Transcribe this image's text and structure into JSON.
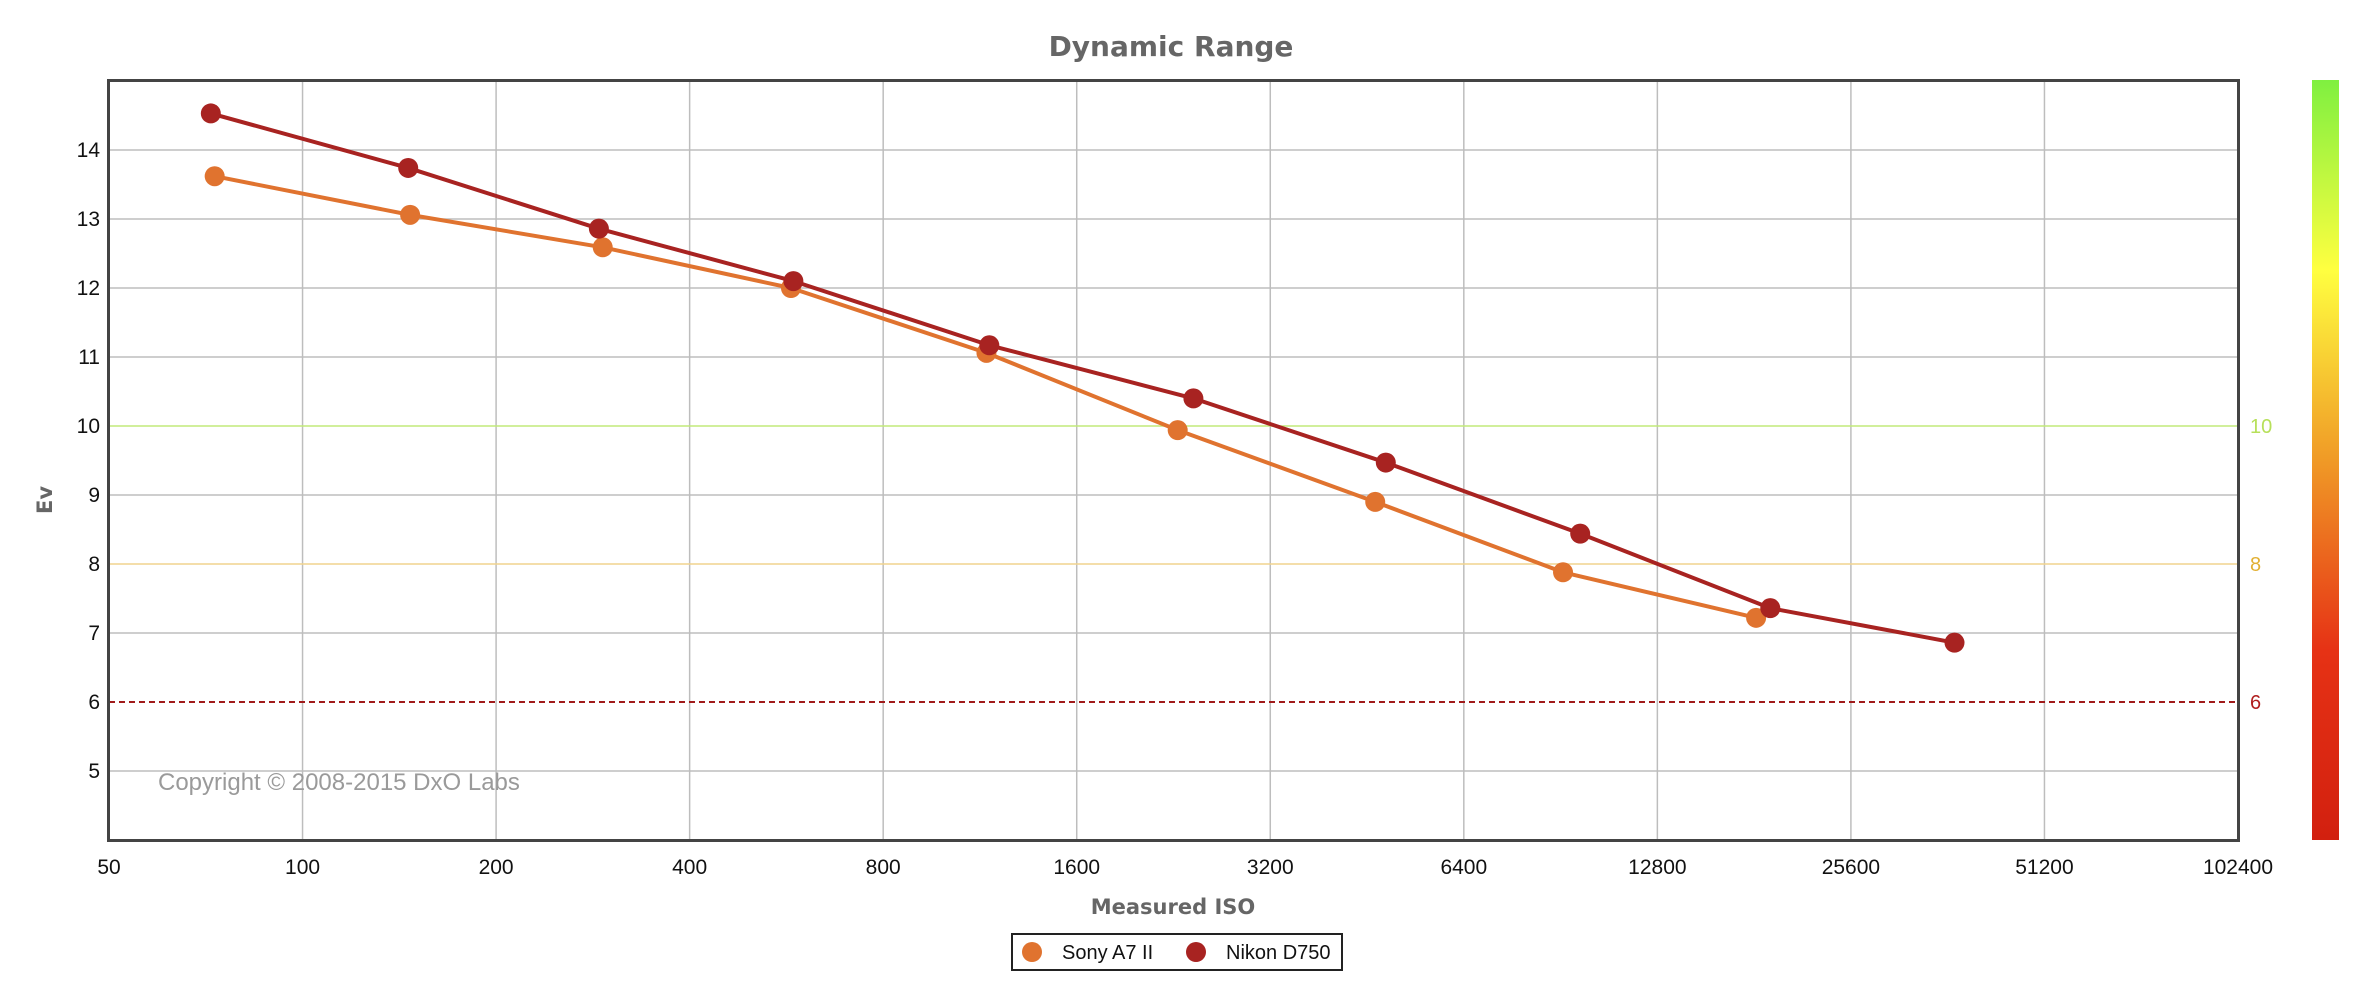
{
  "chart_data": {
    "type": "line",
    "title": "Dynamic Range",
    "xlabel": "Measured ISO",
    "ylabel": "Ev",
    "x_scale": "log2",
    "x_ticks": [
      50,
      100,
      200,
      400,
      800,
      1600,
      3200,
      6400,
      12800,
      25600,
      51200,
      102400
    ],
    "x_tick_labels": [
      "50",
      "100",
      "200",
      "400",
      "800",
      "1600",
      "3200",
      "6400",
      "12800",
      "25600",
      "51200",
      "102400"
    ],
    "xlim": [
      50,
      102400
    ],
    "y_ticks": [
      5,
      6,
      7,
      8,
      9,
      10,
      11,
      12,
      13,
      14
    ],
    "y_tick_labels": [
      "5",
      "6",
      "7",
      "8",
      "9",
      "10",
      "11",
      "12",
      "13",
      "14"
    ],
    "ylim": [
      4,
      15
    ],
    "grid": true,
    "legend_position": "bottom-center",
    "series": [
      {
        "name": "Sony A7 II",
        "color": "#e0732f",
        "x": [
          73,
          147,
          293,
          575,
          1158,
          2297,
          4660,
          9130,
          18230
        ],
        "y": [
          13.62,
          13.06,
          12.59,
          12.0,
          11.06,
          9.94,
          8.9,
          7.88,
          7.22
        ]
      },
      {
        "name": "Nikon D750",
        "color": "#a82321",
        "x": [
          72,
          146,
          289,
          580,
          1170,
          2430,
          4840,
          9710,
          19180,
          37100
        ],
        "y": [
          14.53,
          13.74,
          12.86,
          12.1,
          11.17,
          10.4,
          9.47,
          8.44,
          7.36,
          6.86
        ]
      }
    ],
    "reference_lines": [
      {
        "value": 10,
        "label": "10",
        "color": "#c2ea7a",
        "label_color": "#b7e05a",
        "style": "solid"
      },
      {
        "value": 8,
        "label": "8",
        "color": "#f1d48e",
        "label_color": "#e2b033",
        "style": "solid"
      },
      {
        "value": 6,
        "label": "6",
        "color": "#a01a1a",
        "label_color": "#b01e1e",
        "style": "dashed"
      }
    ],
    "color_scale": {
      "colors": [
        "#7ff040",
        "#ffff40",
        "#f09a26",
        "#e63215",
        "#d2200f"
      ]
    },
    "annotation": "Copyright © 2008-2015 DxO Labs"
  }
}
